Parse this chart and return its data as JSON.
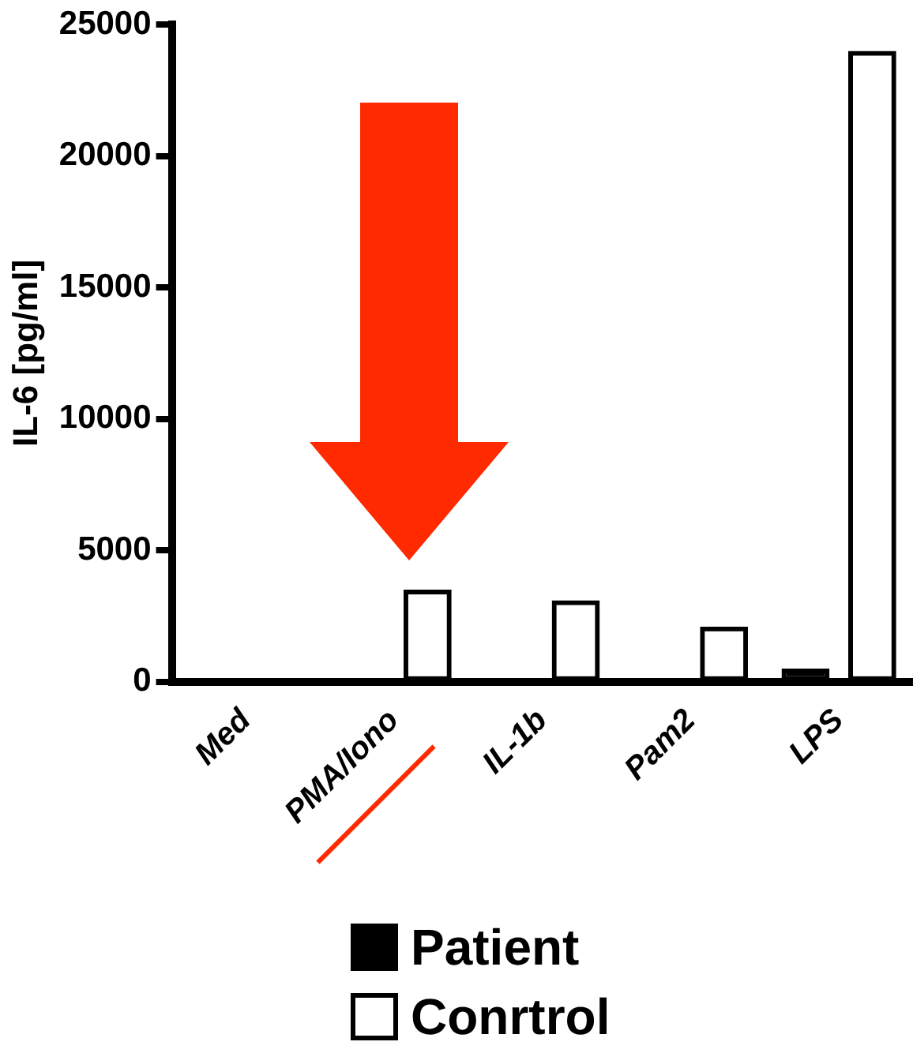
{
  "chart_data": {
    "type": "bar",
    "ylabel": "IL-6 [pg/ml]",
    "categories": [
      "Med",
      "PMA/Iono",
      "IL-1b",
      "Pam2",
      "LPS"
    ],
    "series": [
      {
        "name": "Patient",
        "color": "#000000",
        "values": [
          0,
          100,
          50,
          30,
          500
        ]
      },
      {
        "name": "Conrtrol",
        "color": "#000000",
        "values": [
          0,
          3500,
          3100,
          2100,
          24000
        ]
      }
    ],
    "ylim": [
      0,
      25000
    ],
    "yticks": [
      0,
      5000,
      10000,
      15000,
      20000,
      25000
    ],
    "grid": false,
    "legend": "bottom"
  }
}
